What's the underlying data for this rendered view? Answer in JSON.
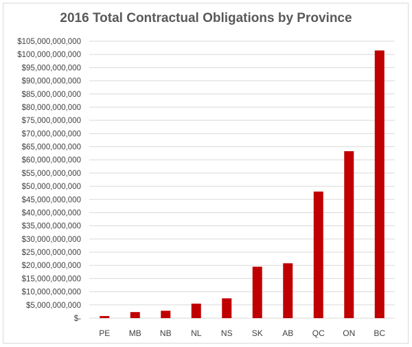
{
  "chart_data": {
    "type": "bar",
    "title": "2016 Total Contractual Obligations by Province",
    "xlabel": "",
    "ylabel": "",
    "categories": [
      "PE",
      "MB",
      "NB",
      "NL",
      "NS",
      "SK",
      "AB",
      "QC",
      "ON",
      "BC"
    ],
    "values": [
      800000000,
      2300000000,
      2800000000,
      5500000000,
      7500000000,
      19500000000,
      20800000000,
      48000000000,
      63300000000,
      101500000000
    ],
    "ylim": [
      0,
      105000000000
    ],
    "ytick_step": 5000000000,
    "ytick_labels": [
      "$-",
      "$5,000,000,000",
      "$10,000,000,000",
      "$15,000,000,000",
      "$20,000,000,000",
      "$25,000,000,000",
      "$30,000,000,000",
      "$35,000,000,000",
      "$40,000,000,000",
      "$45,000,000,000",
      "$50,000,000,000",
      "$55,000,000,000",
      "$60,000,000,000",
      "$65,000,000,000",
      "$70,000,000,000",
      "$75,000,000,000",
      "$80,000,000,000",
      "$85,000,000,000",
      "$90,000,000,000",
      "$95,000,000,000",
      "$100,000,000,000",
      "$105,000,000,000"
    ],
    "grid": true,
    "legend": "none",
    "bar_color": "#c00000",
    "grid_color": "#d9d9d9"
  }
}
